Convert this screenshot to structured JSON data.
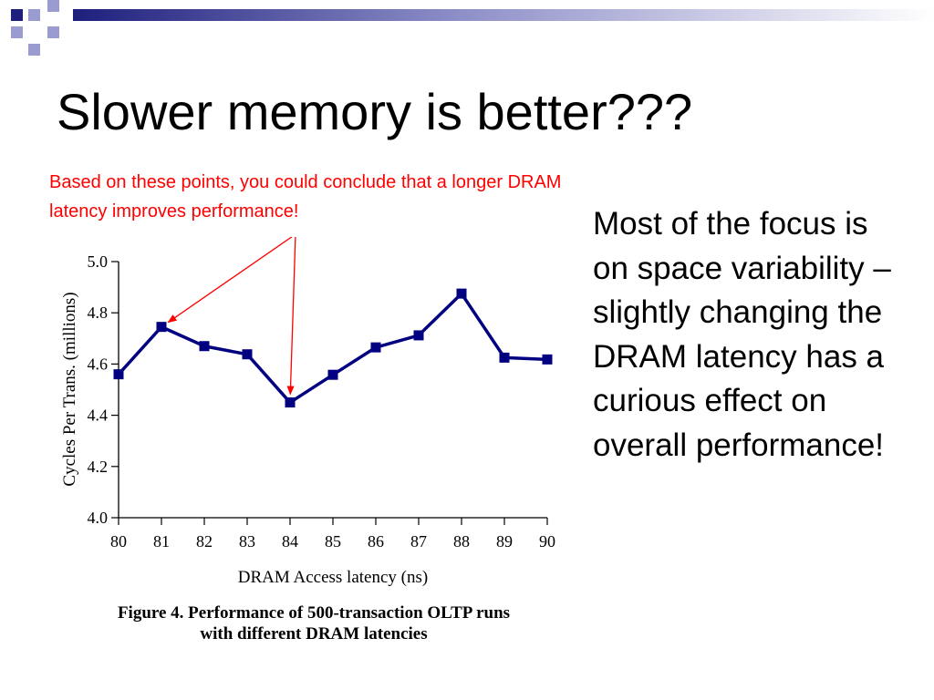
{
  "slide": {
    "title": "Slower memory is better???",
    "callout": "Based on these points, you could conclude that a longer DRAM latency improves performance!",
    "side_text": "Most of the focus is on space variability – slightly changing the DRAM latency has a curious effect on overall performance!",
    "caption_line1": "Figure 4. Performance of 500-transaction OLTP runs",
    "caption_line2": "with different DRAM latencies"
  },
  "colors": {
    "series": "#000080",
    "callout": "#ff0000",
    "logo": "#1e1f7c",
    "logo_light": "#9a9bd0"
  },
  "chart_data": {
    "type": "line",
    "title": "",
    "xlabel": "DRAM Access latency (ns)",
    "ylabel": "Cycles Per Trans. (millions)",
    "x": [
      80,
      81,
      82,
      83,
      84,
      85,
      86,
      87,
      88,
      89,
      90
    ],
    "series": [
      {
        "values": [
          4.56,
          4.745,
          4.67,
          4.638,
          4.45,
          4.558,
          4.665,
          4.712,
          4.875,
          4.625,
          4.618
        ]
      }
    ],
    "xlim": [
      80,
      90
    ],
    "ylim": [
      4.0,
      5.0
    ],
    "yticks": [
      "4.0",
      "4.2",
      "4.4",
      "4.6",
      "4.8",
      "5.0"
    ],
    "xticks": [
      "80",
      "81",
      "82",
      "83",
      "84",
      "85",
      "86",
      "87",
      "88",
      "89",
      "90"
    ],
    "grid": false,
    "annotation_arrow_targets": [
      81,
      84
    ]
  }
}
